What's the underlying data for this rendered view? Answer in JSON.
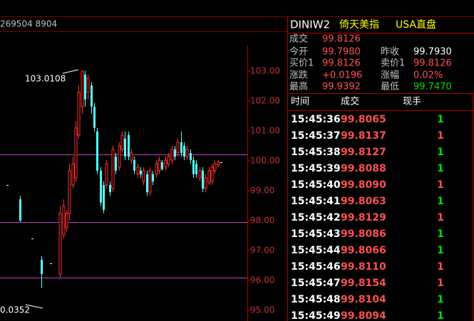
{
  "header": {
    "text": "269504 8904"
  },
  "chart_data": {
    "type": "candlestick",
    "categories": [
      null,
      null,
      null,
      null,
      null,
      null,
      null,
      null,
      null,
      null,
      null,
      null,
      null,
      null,
      null,
      null,
      null,
      null,
      null,
      null,
      null,
      null,
      null,
      null,
      null,
      null,
      null,
      null,
      null,
      null,
      null,
      null,
      null,
      null,
      null,
      null,
      null,
      null,
      null,
      null,
      null,
      null,
      null,
      null,
      null,
      null,
      null,
      null,
      null,
      null,
      null,
      null,
      null,
      null,
      null,
      null,
      null,
      null,
      null,
      null,
      null,
      null,
      null,
      null,
      null,
      null,
      null,
      null,
      null,
      null,
      null
    ],
    "open": [
      null,
      99.19,
      null,
      null,
      null,
      98.71,
      null,
      null,
      null,
      97.4,
      null,
      null,
      96.69,
      null,
      null,
      96.57,
      null,
      null,
      96.21,
      97.52,
      97.76,
      98.24,
      99.19,
      99.43,
      100.86,
      101.81,
      102.88,
      102.29,
      102.52,
      101.81,
      100.98,
      99.67,
      99.19,
      99.19,
      99.19,
      99.07,
      100.14,
      99.79,
      100.38,
      100.74,
      100.86,
      100.02,
      100.02,
      99.55,
      99.67,
      99.31,
      99.55,
      98.95,
      99.55,
      99.55,
      99.67,
      99.95,
      99.79,
      99.9,
      100.02,
      100.38,
      100.26,
      100.62,
      100.5,
      100.14,
      100.26,
      100.02,
      99.9,
      99.43,
      99.67,
      99.07,
      99.26,
      99.31,
      99.67,
      99.86,
      99.95
    ],
    "high": [
      null,
      99.19,
      null,
      null,
      null,
      98.83,
      null,
      null,
      null,
      97.4,
      null,
      null,
      96.81,
      null,
      null,
      96.57,
      null,
      null,
      98.48,
      98.71,
      98.36,
      99.9,
      100.14,
      101.33,
      102.52,
      103.01,
      103.01,
      102.88,
      102.64,
      101.93,
      101.1,
      99.79,
      99.31,
      100.02,
      99.31,
      100.5,
      100.26,
      100.62,
      100.98,
      100.98,
      100.98,
      100.38,
      100.14,
      99.9,
      99.79,
      99.79,
      99.67,
      99.79,
      99.67,
      100.02,
      100.14,
      100.02,
      100.14,
      100.26,
      100.5,
      100.5,
      100.74,
      100.98,
      100.62,
      100.5,
      100.38,
      100.14,
      100.02,
      99.79,
      99.79,
      99.55,
      99.79,
      99.9,
      100.02,
      100.02,
      99.95
    ],
    "low": [
      null,
      99.19,
      null,
      null,
      null,
      97.95,
      null,
      null,
      null,
      97.4,
      null,
      null,
      95.74,
      null,
      null,
      96.57,
      null,
      null,
      96.1,
      97.4,
      97.64,
      98.0,
      99.07,
      99.31,
      100.74,
      101.57,
      101.81,
      102.05,
      101.57,
      100.98,
      99.55,
      98.48,
      98.24,
      99.07,
      98.83,
      98.95,
      99.55,
      99.67,
      100.26,
      100.02,
      100.02,
      99.9,
      99.55,
      99.43,
      99.43,
      99.19,
      98.83,
      98.83,
      99.19,
      99.43,
      99.55,
      99.67,
      99.67,
      99.79,
      99.9,
      100.02,
      100.14,
      100.14,
      100.02,
      100.02,
      99.9,
      99.43,
      99.43,
      99.31,
      98.95,
      98.95,
      99.19,
      99.19,
      99.55,
      99.79,
      99.95
    ],
    "close": [
      null,
      99.19,
      null,
      null,
      null,
      98.0,
      null,
      null,
      null,
      97.4,
      null,
      null,
      96.21,
      null,
      null,
      96.57,
      null,
      null,
      98.24,
      98.48,
      98.24,
      99.67,
      99.9,
      101.1,
      102.29,
      103.0,
      102.05,
      102.76,
      101.81,
      101.1,
      99.67,
      98.6,
      98.36,
      99.9,
      98.95,
      100.38,
      99.67,
      100.5,
      100.86,
      100.14,
      100.14,
      100.26,
      99.67,
      99.79,
      99.55,
      99.67,
      98.95,
      99.67,
      99.31,
      99.9,
      100.02,
      99.72,
      100.02,
      100.14,
      100.38,
      100.14,
      100.62,
      100.26,
      100.14,
      100.38,
      100.02,
      99.55,
      99.55,
      99.67,
      99.07,
      99.43,
      99.67,
      99.79,
      99.9,
      99.95,
      99.95
    ],
    "up_color": "#ff3232",
    "down_color": "#54ffff",
    "flat_color": "#ffffff",
    "ylim": [
      94.64,
      104.33
    ],
    "yticks": [
      {
        "value": 95,
        "label": "95.00"
      },
      {
        "value": 96,
        "label": "96.00"
      },
      {
        "value": 97,
        "label": "97.00"
      },
      {
        "value": 98,
        "label": "98.00"
      },
      {
        "value": 99,
        "label": "99.00"
      },
      {
        "value": 100,
        "label": "100.00"
      },
      {
        "value": 101,
        "label": "101.00"
      },
      {
        "value": 102,
        "label": "102.00"
      },
      {
        "value": 103,
        "label": "103.00"
      }
    ],
    "reference_lines": [
      100.21,
      97.95,
      96.1
    ],
    "reference_color": "#c040c0",
    "annotations": [
      "103.0108",
      "0.0352"
    ]
  },
  "quote": {
    "symbol": "DINIW2",
    "name": "倚天美指",
    "market": "USA直盘",
    "rows": [
      [
        {
          "label": "成交",
          "value": "99.8126",
          "color": "#ff5050"
        }
      ],
      [
        {
          "label": "今开",
          "value": "99.7980",
          "color": "#ff5050"
        },
        {
          "label": "昨收",
          "value": "99.7930",
          "color": "#ffffff"
        }
      ],
      [
        {
          "label": "买价1",
          "value": "99.8126",
          "color": "#ff5050"
        },
        {
          "label": "卖价1",
          "value": "99.8126",
          "color": "#ff5050"
        }
      ],
      [
        {
          "label": "涨跌",
          "value": "+0.0196",
          "color": "#ff5050"
        },
        {
          "label": "涨幅",
          "value": "0.02%",
          "color": "#ff5050"
        }
      ],
      [
        {
          "label": "最高",
          "value": "99.9392",
          "color": "#ff5050"
        },
        {
          "label": "最低",
          "value": "99.7470",
          "color": "#00e000"
        }
      ]
    ]
  },
  "trades": {
    "columns": [
      "时间",
      "成交",
      "现手"
    ],
    "rows": [
      {
        "time": "15:45:36",
        "price": "99.8065",
        "volume": 1,
        "color": "#00e000"
      },
      {
        "time": "15:45:37",
        "price": "99.8137",
        "volume": 1,
        "color": "#ff5050"
      },
      {
        "time": "15:45:38",
        "price": "99.8127",
        "volume": 1,
        "color": "#00e000"
      },
      {
        "time": "15:45:39",
        "price": "99.8088",
        "volume": 1,
        "color": "#00e000"
      },
      {
        "time": "15:45:40",
        "price": "99.8090",
        "volume": 1,
        "color": "#ff5050"
      },
      {
        "time": "15:45:41",
        "price": "99.8063",
        "volume": 1,
        "color": "#00e000"
      },
      {
        "time": "15:45:42",
        "price": "99.8129",
        "volume": 1,
        "color": "#ff5050"
      },
      {
        "time": "15:45:43",
        "price": "99.8086",
        "volume": 1,
        "color": "#00e000"
      },
      {
        "time": "15:45:44",
        "price": "99.8066",
        "volume": 1,
        "color": "#00e000"
      },
      {
        "time": "15:45:46",
        "price": "99.8110",
        "volume": 1,
        "color": "#ff5050"
      },
      {
        "time": "15:45:47",
        "price": "99.8154",
        "volume": 1,
        "color": "#ff5050"
      },
      {
        "time": "15:45:48",
        "price": "99.8104",
        "volume": 1,
        "color": "#00e000"
      },
      {
        "time": "15:45:49",
        "price": "99.8094",
        "volume": 1,
        "color": "#00e000"
      }
    ]
  }
}
